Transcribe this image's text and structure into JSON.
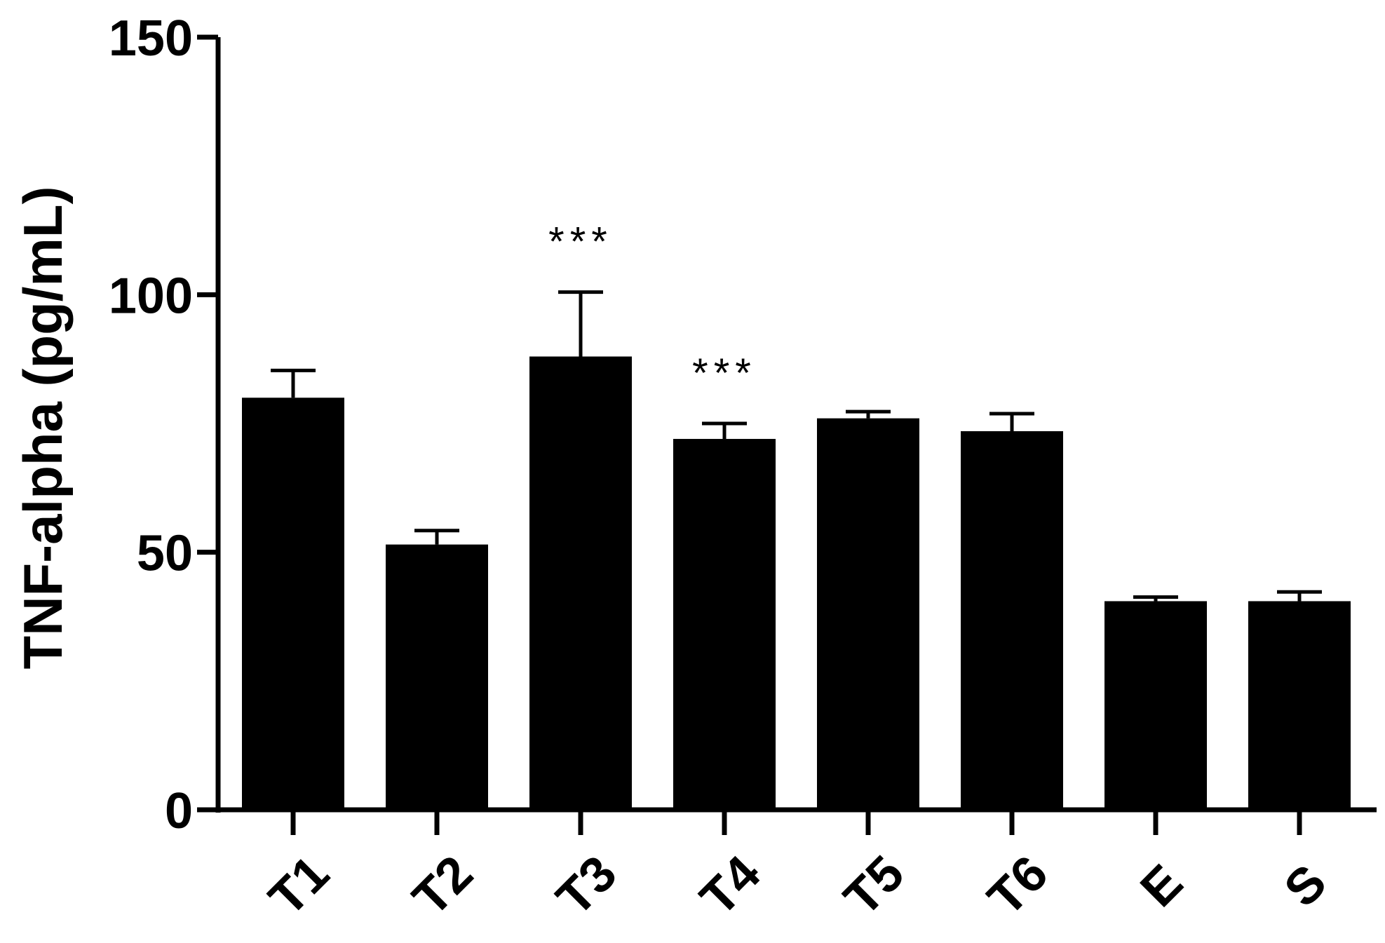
{
  "chart_data": {
    "type": "bar",
    "title": "",
    "xlabel": "",
    "ylabel": "TNF-alpha (pg/mL)",
    "ylim": [
      0,
      150
    ],
    "yticks": [
      "0",
      "50",
      "100",
      "150"
    ],
    "categories": [
      "T1",
      "T2",
      "T3",
      "T4",
      "T5",
      "T6",
      "E",
      "S"
    ],
    "values": [
      80,
      51.5,
      88,
      72,
      76,
      73.5,
      40.5,
      40.5
    ],
    "errors": [
      5.3,
      2.7,
      12.5,
      3,
      1.3,
      3.4,
      0.8,
      1.8
    ],
    "annotations": [
      {
        "category": "T3",
        "text": "***"
      },
      {
        "category": "T4",
        "text": "***"
      }
    ],
    "bar_color": "#000000",
    "grid": false,
    "legend": "none"
  }
}
